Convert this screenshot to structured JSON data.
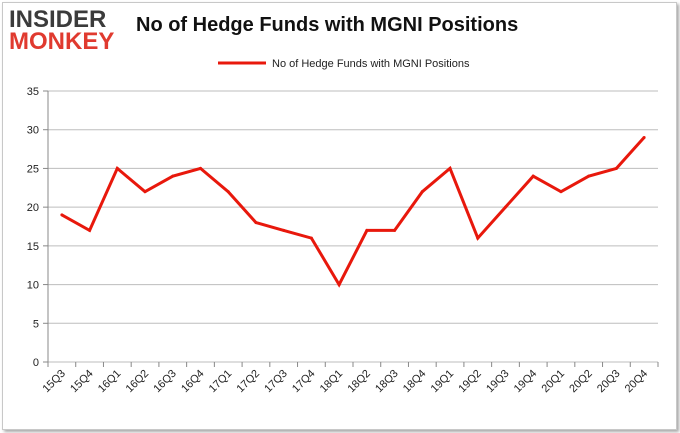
{
  "logo": {
    "line1": "INSIDER",
    "line2": "MONKEY"
  },
  "chart_data": {
    "type": "line",
    "title": "No of Hedge Funds with MGNI Positions",
    "categories": [
      "15Q3",
      "15Q4",
      "16Q1",
      "16Q2",
      "16Q3",
      "16Q4",
      "17Q1",
      "17Q2",
      "17Q3",
      "17Q4",
      "18Q1",
      "18Q2",
      "18Q3",
      "18Q4",
      "19Q1",
      "19Q2",
      "19Q3",
      "19Q4",
      "20Q1",
      "20Q2",
      "20Q3",
      "20Q4"
    ],
    "series": [
      {
        "name": "No of Hedge Funds with MGNI Positions",
        "values": [
          19,
          17,
          25,
          22,
          24,
          25,
          22,
          18,
          17,
          16,
          10,
          17,
          17,
          22,
          25,
          16,
          20,
          24,
          22,
          24,
          25,
          29
        ],
        "color": "#e8180c"
      }
    ],
    "yticks": [
      0,
      5,
      10,
      15,
      20,
      25,
      30,
      35
    ],
    "ylim": [
      0,
      35
    ],
    "grid": true,
    "legend_position": "top-center"
  }
}
